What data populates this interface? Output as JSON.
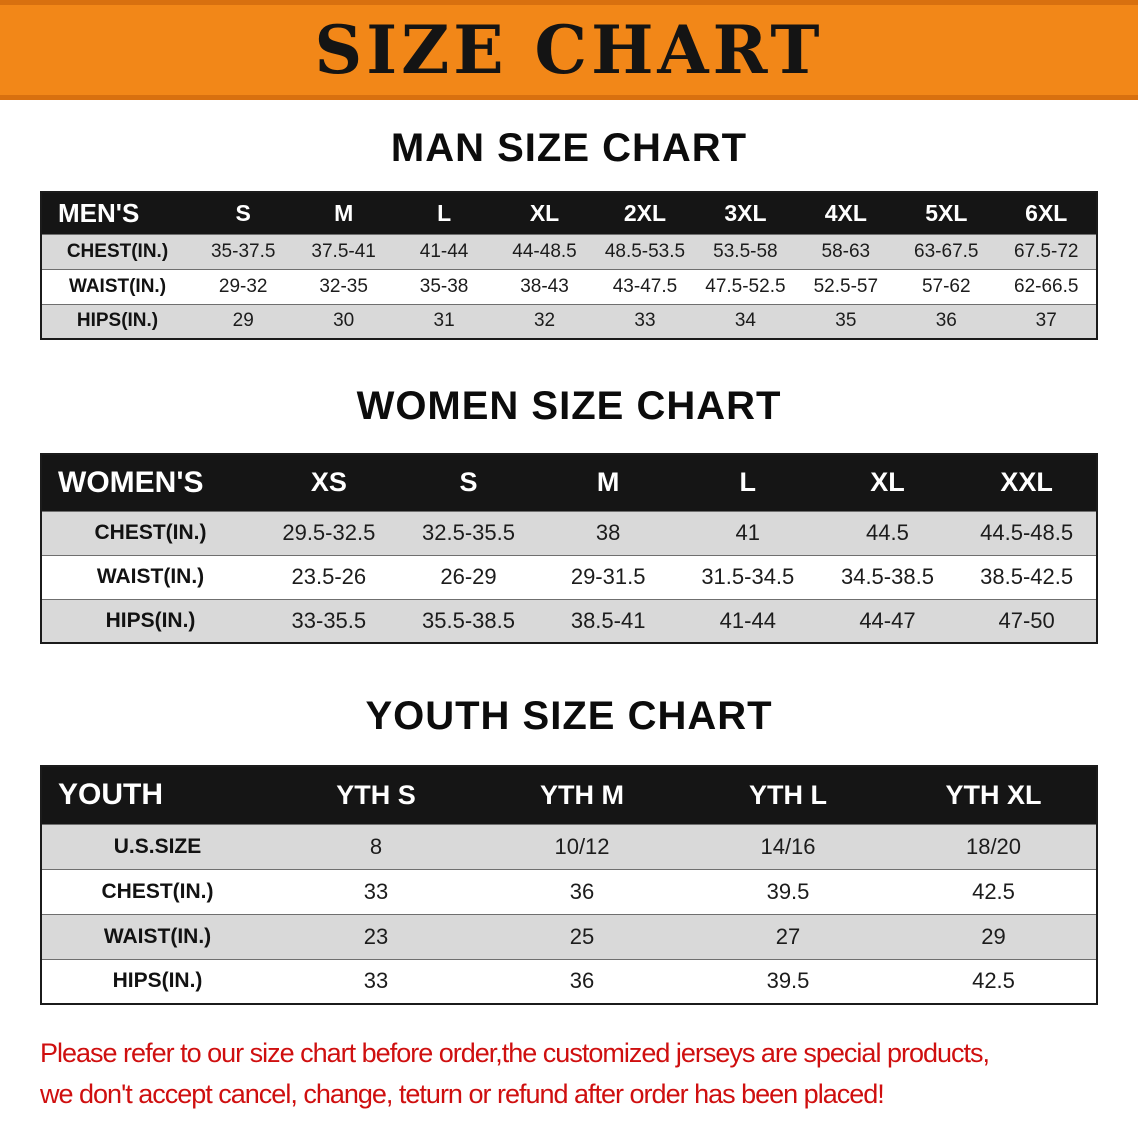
{
  "banner": {
    "title": "SIZE CHART"
  },
  "sections": [
    {
      "heading": "MAN SIZE CHART",
      "table": {
        "header_label": "MEN'S",
        "columns": [
          "S",
          "M",
          "L",
          "XL",
          "2XL",
          "3XL",
          "4XL",
          "5XL",
          "6XL"
        ],
        "rows": [
          {
            "label": "CHEST(IN.)",
            "values": [
              "35-37.5",
              "37.5-41",
              "41-44",
              "44-48.5",
              "48.5-53.5",
              "53.5-58",
              "58-63",
              "63-67.5",
              "67.5-72"
            ]
          },
          {
            "label": "WAIST(IN.)",
            "values": [
              "29-32",
              "32-35",
              "35-38",
              "38-43",
              "43-47.5",
              "47.5-52.5",
              "52.5-57",
              "57-62",
              "62-66.5"
            ]
          },
          {
            "label": "HIPS(IN.)",
            "values": [
              "29",
              "30",
              "31",
              "32",
              "33",
              "34",
              "35",
              "36",
              "37"
            ]
          }
        ]
      }
    },
    {
      "heading": "WOMEN SIZE CHART",
      "table": {
        "header_label": "WOMEN'S",
        "columns": [
          "XS",
          "S",
          "M",
          "L",
          "XL",
          "XXL"
        ],
        "rows": [
          {
            "label": "CHEST(IN.)",
            "values": [
              "29.5-32.5",
              "32.5-35.5",
              "38",
              "41",
              "44.5",
              "44.5-48.5"
            ]
          },
          {
            "label": "WAIST(IN.)",
            "values": [
              "23.5-26",
              "26-29",
              "29-31.5",
              "31.5-34.5",
              "34.5-38.5",
              "38.5-42.5"
            ]
          },
          {
            "label": "HIPS(IN.)",
            "values": [
              "33-35.5",
              "35.5-38.5",
              "38.5-41",
              "41-44",
              "44-47",
              "47-50"
            ]
          }
        ]
      }
    },
    {
      "heading": "YOUTH SIZE CHART",
      "table": {
        "header_label": "YOUTH",
        "columns": [
          "YTH S",
          "YTH M",
          "YTH L",
          "YTH XL"
        ],
        "rows": [
          {
            "label": "U.S.SIZE",
            "values": [
              "8",
              "10/12",
              "14/16",
              "18/20"
            ]
          },
          {
            "label": "CHEST(IN.)",
            "values": [
              "33",
              "36",
              "39.5",
              "42.5"
            ]
          },
          {
            "label": "WAIST(IN.)",
            "values": [
              "23",
              "25",
              "27",
              "29"
            ]
          },
          {
            "label": "HIPS(IN.)",
            "values": [
              "33",
              "36",
              "39.5",
              "42.5"
            ]
          }
        ]
      }
    }
  ],
  "footer": {
    "line1": "Please refer to our size chart before order,the customized jerseys are special products,",
    "line2": "we don't accept cancel, change, teturn or refund after order has been placed!"
  },
  "colors": {
    "banner_orange": "#f28718",
    "banner_edge": "#d8700f",
    "header_black": "#151515",
    "row_gray": "#d9d9d9",
    "notice_red": "#cf0f0f"
  }
}
